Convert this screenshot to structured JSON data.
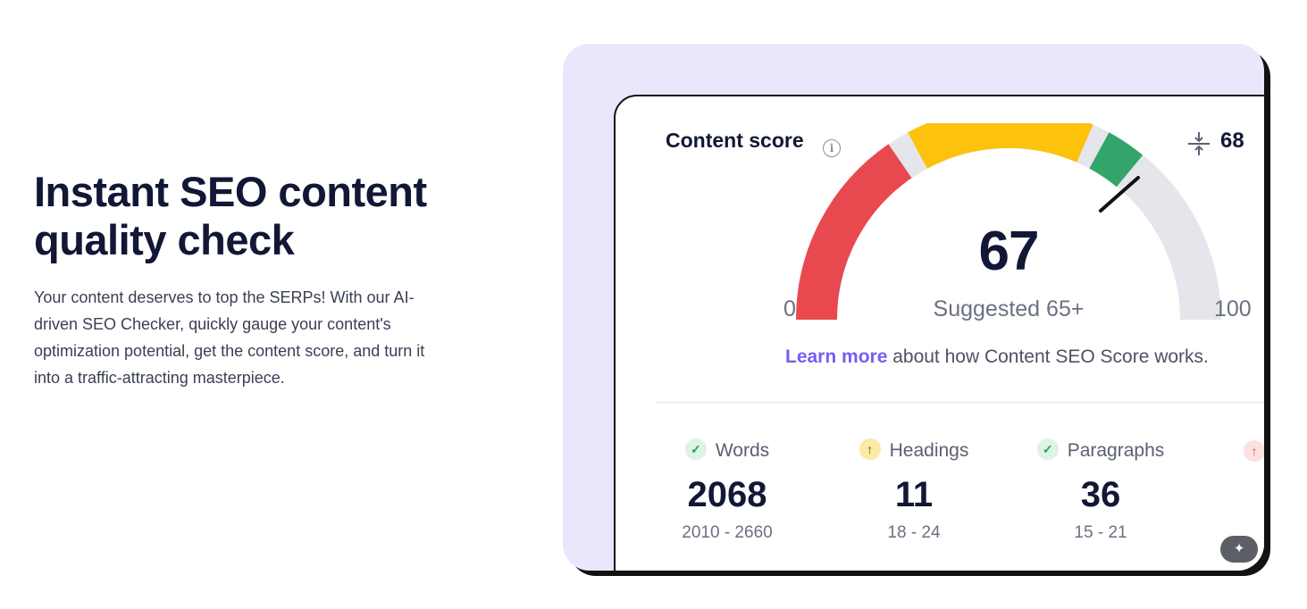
{
  "hero": {
    "title": "Instant SEO content quality check",
    "description": "Your content deserves to top the SERPs! With our AI-driven SEO Checker, quickly gauge your content's optimization potential, get the content score, and turn it into a traffic-attracting masterpiece."
  },
  "card": {
    "title": "Content score",
    "info_icon": "info-icon",
    "compare_icon": "compare-arrows-icon",
    "compare_value": "68",
    "score": "67",
    "suggested": "Suggested 65+",
    "axis_min": "0",
    "axis_max": "100",
    "learn_more_link": "Learn more",
    "learn_more_text": " about how Content SEO Score works.",
    "gauge": {
      "min": 0,
      "max": 100,
      "value": 67,
      "marker": 75
    }
  },
  "metrics": [
    {
      "label": "Words",
      "value": "2068",
      "range": "2010 - 2660",
      "status": "check-icon"
    },
    {
      "label": "Headings",
      "value": "11",
      "range": "18 - 24",
      "status": "arrow-up-icon"
    },
    {
      "label": "Paragraphs",
      "value": "36",
      "range": "15 - 21",
      "status": "check-icon"
    }
  ],
  "colors": {
    "panel_bg": "#ebe6fb",
    "gauge_red": "#e8494f",
    "gauge_yellow": "#fdc20b",
    "gauge_green": "#33a56b",
    "gauge_empty": "#e5e6ec",
    "link": "#7a5cf0"
  }
}
